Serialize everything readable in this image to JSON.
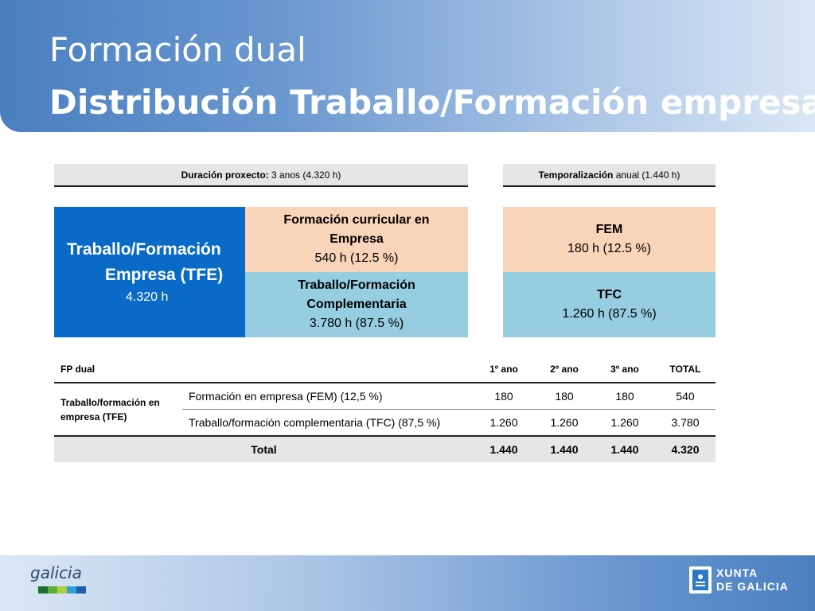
{
  "title": {
    "line1": "Formación dual",
    "line2": "Distribución Traballo/Formación empresa"
  },
  "caption_left": {
    "bold": "Duración proxecto:",
    "rest": " 3 anos (4.320 h)"
  },
  "caption_right": {
    "bold": "Temporalización",
    "rest": " anual (1.440 h)"
  },
  "tfe_box": {
    "line1": "Traballo/Formación",
    "line2": "Empresa (TFE)",
    "hours": "4.320 h"
  },
  "fce_box": {
    "line1": "Formación curricular en",
    "line2": "Empresa",
    "hours": "540 h (12.5 %)"
  },
  "tfc_box": {
    "line1": "Traballo/Formación",
    "line2": "Complementaria",
    "hours": "3.780 h (87.5 %)"
  },
  "fem_right": {
    "label": "FEM",
    "hours": "180 h (12.5 %)"
  },
  "tfc_right": {
    "label": "TFC",
    "hours": "1.260 h (87.5 %)"
  },
  "table": {
    "header": {
      "label": "FP dual",
      "y1": "1º ano",
      "y2": "2º ano",
      "y3": "3º ano",
      "total": "TOTAL"
    },
    "group_label": "Traballo/formación en empresa (TFE)",
    "rows": [
      {
        "label": "Formación en empresa (FEM) (12,5 %)",
        "y1": "180",
        "y2": "180",
        "y3": "180",
        "total": "540"
      },
      {
        "label": "Traballo/formación complementaria (TFC) (87,5 %)",
        "y1": "1.260",
        "y2": "1.260",
        "y3": "1.260",
        "total": "3.780"
      }
    ],
    "total_row": {
      "label": "Total",
      "y1": "1.440",
      "y2": "1.440",
      "y3": "1.440",
      "total": "4.320"
    }
  },
  "footer": {
    "galicia_logo": "galicia",
    "xunta_line1": "XUNTA",
    "xunta_line2": "DE GALICIA"
  },
  "colors": {
    "accent_blue": "#0a6ac7",
    "peach": "#f9d4b8",
    "light_blue": "#96cde0"
  }
}
